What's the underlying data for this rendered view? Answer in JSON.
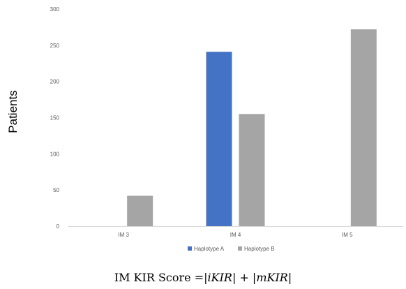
{
  "chart_data": {
    "type": "bar",
    "categories": [
      "IM 3",
      "IM 4",
      "IM 5"
    ],
    "series": [
      {
        "name": "Haplotype A",
        "values": [
          0,
          241,
          0
        ],
        "color": "#4472C4"
      },
      {
        "name": "Haplotype B",
        "values": [
          42,
          155,
          272
        ],
        "color": "#A5A5A5"
      }
    ],
    "ylim": [
      0,
      300
    ],
    "yticks": [
      0,
      50,
      100,
      150,
      200,
      250,
      300
    ],
    "ylabel": "Patients",
    "xlabel_prefix": "IM KIR Score =",
    "xlabel_terms": [
      "iKIR",
      "mKIR"
    ],
    "xlabel_operator": "+",
    "grid": false,
    "legend_position": "bottom"
  }
}
